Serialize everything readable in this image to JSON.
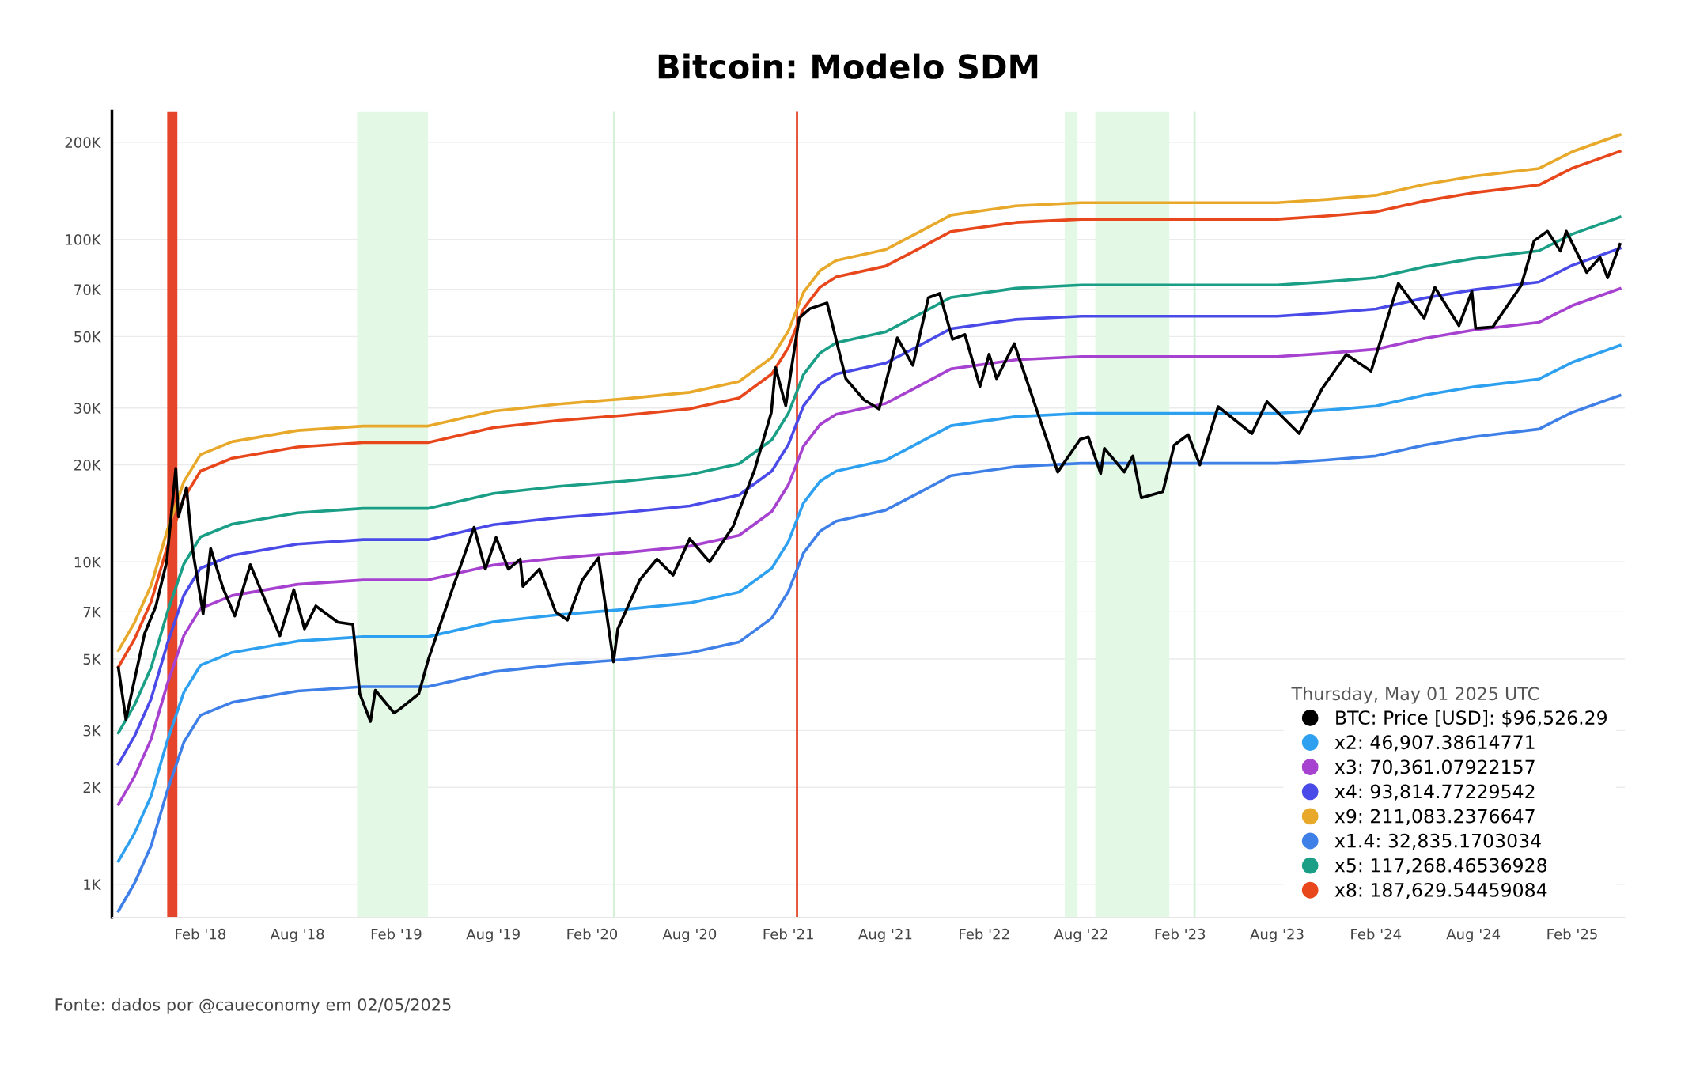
{
  "chart_data": {
    "type": "line",
    "title": "Bitcoin: Modelo SDM",
    "log": true,
    "grid": "y",
    "legend": "bottom right",
    "legend_title": "Thursday, May 01 2025 UTC",
    "xlim": [
      "2017-08-20",
      "2025-05-10"
    ],
    "ylim": [
      790,
      250000
    ],
    "xticks": [
      {
        "value": "2018-02-01",
        "label": "Feb '18"
      },
      {
        "value": "2018-08-01",
        "label": "Aug '18"
      },
      {
        "value": "2019-02-01",
        "label": "Feb '19"
      },
      {
        "value": "2019-08-01",
        "label": "Aug '19"
      },
      {
        "value": "2020-02-01",
        "label": "Feb '20"
      },
      {
        "value": "2020-08-01",
        "label": "Aug '20"
      },
      {
        "value": "2021-02-01",
        "label": "Feb '21"
      },
      {
        "value": "2021-08-01",
        "label": "Aug '21"
      },
      {
        "value": "2022-02-01",
        "label": "Feb '22"
      },
      {
        "value": "2022-08-01",
        "label": "Aug '22"
      },
      {
        "value": "2023-02-01",
        "label": "Feb '23"
      },
      {
        "value": "2023-08-01",
        "label": "Aug '23"
      },
      {
        "value": "2024-02-01",
        "label": "Feb '24"
      },
      {
        "value": "2024-08-01",
        "label": "Aug '24"
      },
      {
        "value": "2025-02-01",
        "label": "Feb '25"
      }
    ],
    "yticks": [
      {
        "value": 1000,
        "label": "1K"
      },
      {
        "value": 2000,
        "label": "2K"
      },
      {
        "value": 3000,
        "label": "3K"
      },
      {
        "value": 5000,
        "label": "5K"
      },
      {
        "value": 7000,
        "label": "7K"
      },
      {
        "value": 10000,
        "label": "10K"
      },
      {
        "value": 20000,
        "label": "20K"
      },
      {
        "value": 30000,
        "label": "30K"
      },
      {
        "value": 50000,
        "label": "50K"
      },
      {
        "value": 70000,
        "label": "70K"
      },
      {
        "value": 100000,
        "label": "100K"
      },
      {
        "value": 200000,
        "label": "200K"
      }
    ],
    "x": [
      "2017-09-01",
      "2017-10-01",
      "2017-11-01",
      "2017-12-01",
      "2018-01-01",
      "2018-02-01",
      "2018-04-01",
      "2018-08-01",
      "2018-12-01",
      "2019-04-01",
      "2019-08-01",
      "2019-12-01",
      "2020-04-01",
      "2020-08-01",
      "2020-11-01",
      "2021-01-01",
      "2021-02-01",
      "2021-03-01",
      "2021-04-01",
      "2021-05-01",
      "2021-08-01",
      "2021-10-01",
      "2021-12-01",
      "2022-04-01",
      "2022-08-01",
      "2023-02-01",
      "2023-08-01",
      "2023-11-01",
      "2024-02-01",
      "2024-05-01",
      "2024-08-01",
      "2024-12-01",
      "2025-02-01",
      "2025-05-01"
    ],
    "bands": [
      {
        "axis": "x",
        "from": "2017-12-01",
        "to": "2017-12-20",
        "color": "#e5452a"
      },
      {
        "axis": "x",
        "from": "2018-11-20",
        "to": "2019-04-01",
        "color": "#e3f9e5"
      },
      {
        "axis": "x",
        "from": "2022-07-01",
        "to": "2022-07-25",
        "color": "#e3f9e5"
      },
      {
        "axis": "x",
        "from": "2022-08-27",
        "to": "2023-01-12",
        "color": "#e3f9e5"
      }
    ],
    "ref_lines": [
      {
        "axis": "x",
        "value": "2021-02-17",
        "color": "#e5452a"
      },
      {
        "axis": "x",
        "value": "2020-03-13",
        "color": "#d5f2d8"
      },
      {
        "axis": "x",
        "value": "2023-02-28",
        "color": "#d5f2d8"
      }
    ],
    "series": [
      {
        "name": "BTC: Price [USD]: $96,526.29",
        "color": "#000000",
        "x": [
          "2017-09-01",
          "2017-09-15",
          "2017-10-01",
          "2017-10-20",
          "2017-11-10",
          "2017-11-30",
          "2017-12-17",
          "2017-12-22",
          "2018-01-06",
          "2018-01-17",
          "2018-02-06",
          "2018-02-20",
          "2018-03-15",
          "2018-04-06",
          "2018-05-05",
          "2018-06-29",
          "2018-07-25",
          "2018-08-14",
          "2018-09-04",
          "2018-10-15",
          "2018-11-12",
          "2018-11-25",
          "2018-12-15",
          "2018-12-24",
          "2019-01-28",
          "2019-02-08",
          "2019-03-15",
          "2019-04-02",
          "2019-05-14",
          "2019-06-26",
          "2019-07-17",
          "2019-08-06",
          "2019-08-29",
          "2019-09-20",
          "2019-09-25",
          "2019-10-26",
          "2019-11-25",
          "2019-12-17",
          "2020-01-14",
          "2020-02-13",
          "2020-03-12",
          "2020-03-20",
          "2020-04-30",
          "2020-06-01",
          "2020-07-01",
          "2020-08-01",
          "2020-09-07",
          "2020-10-21",
          "2020-11-30",
          "2020-12-31",
          "2021-01-08",
          "2021-01-27",
          "2021-02-21",
          "2021-03-13",
          "2021-04-14",
          "2021-05-19",
          "2021-06-22",
          "2021-07-20",
          "2021-08-23",
          "2021-09-21",
          "2021-10-20",
          "2021-11-10",
          "2021-12-04",
          "2021-12-27",
          "2022-01-24",
          "2022-02-10",
          "2022-02-24",
          "2022-03-29",
          "2022-05-12",
          "2022-06-18",
          "2022-07-30",
          "2022-08-14",
          "2022-09-06",
          "2022-09-13",
          "2022-10-20",
          "2022-11-05",
          "2022-11-21",
          "2022-12-31",
          "2023-01-21",
          "2023-02-16",
          "2023-03-10",
          "2023-04-13",
          "2023-06-15",
          "2023-07-13",
          "2023-09-11",
          "2023-10-24",
          "2023-12-08",
          "2024-01-23",
          "2024-03-14",
          "2024-05-01",
          "2024-05-21",
          "2024-07-05",
          "2024-07-29",
          "2024-08-05",
          "2024-09-06",
          "2024-10-29",
          "2024-11-22",
          "2024-12-17",
          "2025-01-10",
          "2025-01-21",
          "2025-02-28",
          "2025-03-25",
          "2025-04-08",
          "2025-05-01"
        ],
        "values": [
          4700,
          3250,
          4300,
          6000,
          7300,
          10000,
          19500,
          13800,
          17000,
          11000,
          6900,
          11000,
          8300,
          6800,
          9800,
          5900,
          8200,
          6200,
          7300,
          6500,
          6400,
          3900,
          3200,
          4000,
          3400,
          3500,
          3900,
          5000,
          8000,
          12800,
          9500,
          11900,
          9500,
          10200,
          8400,
          9500,
          7000,
          6600,
          8800,
          10300,
          4900,
          6200,
          8800,
          10200,
          9100,
          11800,
          10000,
          12900,
          19300,
          29000,
          40000,
          30500,
          57000,
          61000,
          63500,
          37000,
          31800,
          29800,
          49500,
          40700,
          66000,
          68000,
          49000,
          50700,
          35000,
          44000,
          37000,
          47500,
          28900,
          19000,
          24000,
          24400,
          18800,
          22500,
          19000,
          21300,
          15800,
          16500,
          23000,
          24800,
          20000,
          30300,
          25000,
          31400,
          25000,
          34500,
          44000,
          39000,
          73000,
          57000,
          71000,
          54000,
          69000,
          53000,
          53500,
          72000,
          99000,
          106000,
          92000,
          106000,
          79000,
          88000,
          76000,
          96526.29
        ]
      },
      {
        "name": "x2: 46,907.38614771",
        "color": "#2ea0f0",
        "values": [
          1180,
          1440,
          1880,
          2780,
          3940,
          4780,
          5240,
          5680,
          5860,
          5860,
          6520,
          6860,
          7120,
          7460,
          8060,
          9560,
          11560,
          15220,
          17780,
          19120,
          20660,
          23340,
          26440,
          28220,
          28880,
          28880,
          28880,
          29560,
          30440,
          32880,
          34880,
          36880,
          41560,
          46907
        ]
      },
      {
        "name": "x3: 70,361.07922157",
        "color": "#a742d0",
        "values": [
          1770,
          2160,
          2820,
          4170,
          5910,
          7170,
          7860,
          8520,
          8790,
          8790,
          9780,
          10290,
          10680,
          11190,
          12090,
          14340,
          17340,
          22830,
          26670,
          28680,
          30990,
          35010,
          39660,
          42330,
          43320,
          43320,
          43320,
          44340,
          45660,
          49320,
          52320,
          55320,
          62340,
          70361
        ]
      },
      {
        "name": "x4: 93,814.77229542",
        "color": "#4a4ae8",
        "values": [
          2360,
          2880,
          3760,
          5560,
          7880,
          9560,
          10480,
          11360,
          11720,
          11720,
          13040,
          13720,
          14240,
          14920,
          16120,
          19120,
          23120,
          30440,
          35560,
          38240,
          41320,
          46680,
          52880,
          56440,
          57760,
          57760,
          57760,
          59120,
          60880,
          65760,
          69760,
          73760,
          83120,
          93815
        ]
      },
      {
        "name": "x9: 211,083.2376647",
        "color": "#e8a92a",
        "values": [
          5310,
          6480,
          8460,
          12510,
          17730,
          21510,
          23580,
          25560,
          26370,
          26370,
          29340,
          30870,
          32040,
          33570,
          36270,
          43020,
          52020,
          68490,
          80010,
          86040,
          92970,
          105030,
          118980,
          126990,
          129960,
          129960,
          129960,
          133020,
          136980,
          147960,
          156960,
          165960,
          187020,
          211083
        ]
      },
      {
        "name": "x1.4: 32,835.1703034",
        "color": "#3f80e8",
        "values": [
          826,
          1008,
          1316,
          1946,
          2758,
          3346,
          3668,
          3976,
          4102,
          4102,
          4564,
          4802,
          4984,
          5222,
          5642,
          6692,
          8092,
          10654,
          12446,
          13384,
          14462,
          16338,
          18508,
          19754,
          20216,
          20216,
          20216,
          20692,
          21308,
          23016,
          24416,
          25816,
          29092,
          32835
        ]
      },
      {
        "name": "x5: 117,268.46536928",
        "color": "#1a9e86",
        "values": [
          2950,
          3600,
          4700,
          6950,
          9850,
          11950,
          13100,
          14200,
          14650,
          14650,
          16300,
          17150,
          17800,
          18650,
          20150,
          23900,
          28900,
          38050,
          44450,
          47800,
          51650,
          58350,
          66100,
          70550,
          72200,
          72200,
          72200,
          73900,
          76100,
          82200,
          87200,
          92200,
          103900,
          117268
        ]
      },
      {
        "name": "x8: 187,629.54459084",
        "color": "#e8471c",
        "values": [
          4720,
          5760,
          7520,
          11120,
          15760,
          19120,
          20960,
          22720,
          23440,
          23440,
          26080,
          27440,
          28480,
          29840,
          32240,
          38240,
          46240,
          60880,
          71120,
          76480,
          82640,
          93360,
          105760,
          112880,
          115520,
          115520,
          115520,
          118240,
          121760,
          131520,
          139520,
          147520,
          166240,
          187630
        ]
      }
    ],
    "annotations": [
      "Fonte: dados por @caueconomy em 02/05/2025"
    ]
  }
}
